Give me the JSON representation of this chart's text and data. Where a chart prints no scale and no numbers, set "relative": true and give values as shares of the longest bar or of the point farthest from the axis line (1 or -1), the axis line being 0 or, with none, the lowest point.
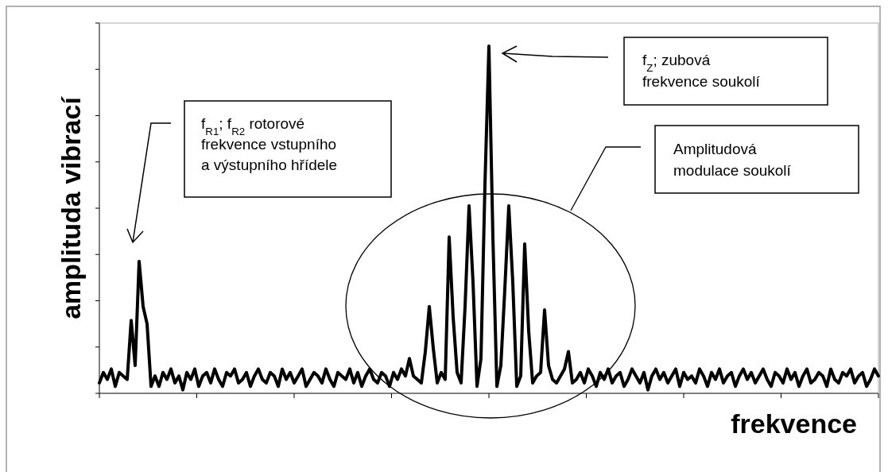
{
  "chart_data": {
    "type": "line",
    "relative": true,
    "xlabel": "frekvence",
    "ylabel": "amplituda vibrací",
    "annotations": [
      "f$_{R1}$; f$_{R2}$ rotorové frekvence vstupního a výstupního hřídele",
      "f$_{Z}$; zubová frekvence soukolí",
      "Amplitudová modulace soukolí"
    ],
    "categories": [
      null,
      null,
      null,
      null,
      null,
      null,
      null,
      null,
      null,
      null,
      null,
      null,
      null,
      null,
      null,
      null,
      null,
      null,
      null,
      null,
      null,
      null,
      null,
      null,
      null,
      null,
      null,
      null,
      null,
      null,
      null,
      null,
      null,
      null,
      null,
      null,
      null,
      null,
      null,
      null,
      null,
      null,
      null,
      null,
      null,
      null,
      null,
      null,
      null,
      null,
      null,
      null,
      null,
      null,
      null,
      null,
      null,
      null,
      null,
      null,
      null,
      null,
      null,
      null,
      null,
      null,
      null,
      null,
      null,
      null,
      null,
      null,
      null,
      null,
      null,
      null,
      null,
      null,
      null,
      null,
      null,
      null,
      null,
      null,
      null,
      null,
      null,
      null,
      null,
      null,
      null,
      null,
      null,
      null,
      null,
      null,
      null,
      null,
      null,
      null,
      null,
      null,
      null,
      null,
      null,
      null,
      null,
      null,
      null,
      null,
      null,
      null,
      null,
      null,
      null,
      null,
      null,
      null,
      null,
      null,
      null,
      null,
      null,
      null,
      null,
      null,
      null,
      null,
      null,
      null,
      null,
      null,
      null,
      null,
      null,
      null,
      null,
      null,
      null,
      null,
      null,
      null,
      null,
      null,
      null,
      null,
      null,
      null,
      null,
      null,
      null,
      null,
      null,
      null,
      null,
      null,
      null,
      null,
      null,
      null,
      null,
      null,
      null,
      null,
      null,
      null,
      null,
      null,
      null,
      null,
      null,
      null,
      null,
      null,
      null,
      null,
      null,
      null,
      null,
      null,
      null,
      null,
      null,
      null,
      null,
      null,
      null,
      null,
      null,
      null,
      null,
      null,
      null,
      null,
      null,
      null,
      null
    ],
    "series": [
      {
        "color": "#000000",
        "values": [
          0.03,
          0.06,
          0.04,
          0.07,
          0.02,
          0.06,
          0.05,
          0.04,
          0.21,
          0.08,
          0.38,
          0.25,
          0.2,
          0.02,
          0.05,
          0.02,
          0.06,
          0.04,
          0.07,
          0.03,
          0.05,
          0.01,
          0.06,
          0.04,
          0.07,
          0.02,
          0.05,
          0.06,
          0.03,
          0.07,
          0.04,
          0.02,
          0.06,
          0.05,
          0.07,
          0.03,
          0.04,
          0.06,
          0.02,
          0.05,
          0.07,
          0.04,
          0.03,
          0.06,
          0.05,
          0.02,
          0.07,
          0.04,
          0.06,
          0.03,
          0.05,
          0.07,
          0.02,
          0.04,
          0.06,
          0.05,
          0.03,
          0.07,
          0.04,
          0.02,
          0.06,
          0.05,
          0.04,
          0.07,
          0.03,
          0.06,
          0.02,
          0.05,
          0.07,
          0.04,
          0.03,
          0.06,
          0.05,
          0.02,
          0.06,
          0.04,
          0.07,
          0.05,
          0.1,
          0.05,
          0.04,
          0.03,
          0.12,
          0.25,
          0.13,
          0.03,
          0.06,
          0.04,
          0.45,
          0.22,
          0.06,
          0.03,
          0.25,
          0.54,
          0.32,
          0.02,
          0.1,
          0.6,
          1,
          0.45,
          0.02,
          0.08,
          0.3,
          0.54,
          0.32,
          0.02,
          0.05,
          0.43,
          0.18,
          0.03,
          0.05,
          0.06,
          0.24,
          0.08,
          0.04,
          0.03,
          0.05,
          0.07,
          0.12,
          0.03,
          0.04,
          0.06,
          0.03,
          0.07,
          0.05,
          0.02,
          0.06,
          0.04,
          0.07,
          0.03,
          0.05,
          0.06,
          0.02,
          0.04,
          0.07,
          0.05,
          0.03,
          0.06,
          0.01,
          0.05,
          0.07,
          0.04,
          0.06,
          0.03,
          0.05,
          0.07,
          0.02,
          0.06,
          0.04,
          0.05,
          0.03,
          0.07,
          0.05,
          0.02,
          0.06,
          0.04,
          0.07,
          0.03,
          0.05,
          0.06,
          0.02,
          0.05,
          0.07,
          0.04,
          0.06,
          0.03,
          0.05,
          0.07,
          0.04,
          0.02,
          0.06,
          0.05,
          0.03,
          0.07,
          0.04,
          0.06,
          0.02,
          0.05,
          0.07,
          0.03,
          0.04,
          0.06,
          0.05,
          0.02,
          0.07,
          0.04,
          0.03,
          0.06,
          0.05,
          0.07,
          0.03,
          0.05,
          0.06,
          0.02,
          0.04,
          0.07,
          0.05
        ]
      }
    ]
  }
}
